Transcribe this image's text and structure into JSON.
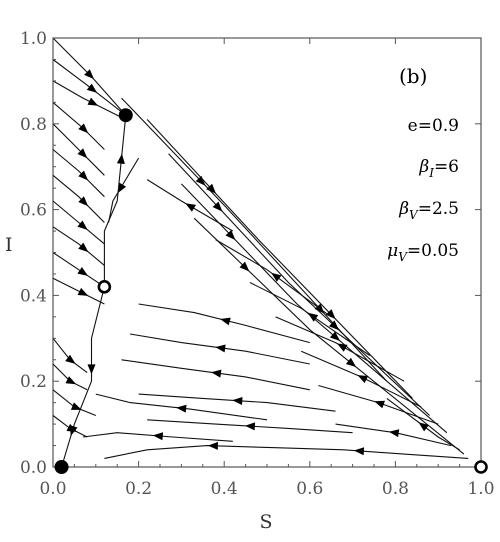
{
  "chart_data": {
    "type": "scatter",
    "panel_label": "(b)",
    "xlabel": "S",
    "ylabel": "I",
    "xlim": [
      0,
      1
    ],
    "ylim": [
      0,
      1
    ],
    "xticks": [
      "0.0",
      "0.2",
      "0.4",
      "0.6",
      "0.8",
      "1.0"
    ],
    "yticks": [
      "0.0",
      "0.2",
      "0.4",
      "0.6",
      "0.8",
      "1.0"
    ],
    "grid": false,
    "parameters": [
      {
        "symbol": "e",
        "sub": "",
        "value": "=0.9"
      },
      {
        "symbol": "β",
        "sub": "I",
        "value": "=6"
      },
      {
        "symbol": "β",
        "sub": "V",
        "value": "=2.5"
      },
      {
        "symbol": "μ",
        "sub": "V",
        "value": "=0.05"
      }
    ],
    "equilibria": [
      {
        "x": 0.02,
        "y": 0.0,
        "stability": "stable"
      },
      {
        "x": 0.17,
        "y": 0.82,
        "stability": "stable"
      },
      {
        "x": 0.12,
        "y": 0.42,
        "stability": "unstable"
      },
      {
        "x": 1.0,
        "y": 0.0,
        "stability": "unstable"
      }
    ],
    "streamlines": [
      {
        "points": [
          [
            0.0,
            1.0
          ],
          [
            0.09,
            0.91
          ],
          [
            0.17,
            0.82
          ]
        ],
        "arrows": [
          0.5
        ]
      },
      {
        "points": [
          [
            0.0,
            0.95
          ],
          [
            0.08,
            0.89
          ],
          [
            0.17,
            0.82
          ]
        ],
        "arrows": [
          0.55
        ]
      },
      {
        "points": [
          [
            0.0,
            0.9
          ],
          [
            0.07,
            0.86
          ],
          [
            0.16,
            0.815
          ]
        ],
        "arrows": [
          0.6
        ]
      },
      {
        "points": [
          [
            0.0,
            0.85
          ],
          [
            0.07,
            0.79
          ],
          [
            0.12,
            0.74
          ]
        ],
        "arrows": [
          0.6
        ]
      },
      {
        "points": [
          [
            0.0,
            0.8
          ],
          [
            0.06,
            0.74
          ],
          [
            0.12,
            0.68
          ]
        ],
        "arrows": [
          0.6
        ]
      },
      {
        "points": [
          [
            0.0,
            0.74
          ],
          [
            0.06,
            0.69
          ],
          [
            0.12,
            0.63
          ]
        ],
        "arrows": [
          0.6
        ]
      },
      {
        "points": [
          [
            0.0,
            0.68
          ],
          [
            0.06,
            0.63
          ],
          [
            0.12,
            0.57
          ]
        ],
        "arrows": [
          0.6
        ]
      },
      {
        "points": [
          [
            0.0,
            0.62
          ],
          [
            0.06,
            0.57
          ],
          [
            0.12,
            0.52
          ]
        ],
        "arrows": [
          0.6
        ]
      },
      {
        "points": [
          [
            0.0,
            0.56
          ],
          [
            0.06,
            0.52
          ],
          [
            0.12,
            0.47
          ]
        ],
        "arrows": [
          0.6
        ]
      },
      {
        "points": [
          [
            0.0,
            0.5
          ],
          [
            0.06,
            0.46
          ],
          [
            0.12,
            0.42
          ]
        ],
        "arrows": [
          0.6
        ]
      },
      {
        "points": [
          [
            0.0,
            0.44
          ],
          [
            0.06,
            0.41
          ],
          [
            0.12,
            0.38
          ]
        ],
        "arrows": [
          0.6
        ]
      },
      {
        "points": [
          [
            0.16,
            0.86
          ],
          [
            0.4,
            0.61
          ],
          [
            0.78,
            0.2
          ]
        ],
        "arrows": [
          0.3,
          0.75
        ]
      },
      {
        "points": [
          [
            0.22,
            0.81
          ],
          [
            0.48,
            0.53
          ],
          [
            0.84,
            0.16
          ]
        ],
        "arrows": [
          0.25,
          0.7
        ]
      },
      {
        "points": [
          [
            0.27,
            0.73
          ],
          [
            0.55,
            0.43
          ],
          [
            0.88,
            0.12
          ]
        ],
        "arrows": [
          0.2,
          0.65
        ]
      },
      {
        "points": [
          [
            0.3,
            0.66
          ],
          [
            0.57,
            0.38
          ],
          [
            0.92,
            0.08
          ]
        ],
        "arrows": [
          0.2,
          0.6
        ]
      },
      {
        "points": [
          [
            0.33,
            0.58
          ],
          [
            0.6,
            0.32
          ],
          [
            0.96,
            0.03
          ]
        ],
        "arrows": [
          0.2,
          0.6
        ]
      },
      {
        "points": [
          [
            0.95,
            0.04
          ],
          [
            0.9,
            0.07
          ],
          [
            0.78,
            0.16
          ]
        ],
        "arrows": [
          0.5
        ]
      },
      {
        "points": [
          [
            0.2,
            0.72
          ],
          [
            0.14,
            0.62
          ],
          [
            0.13,
            0.57
          ]
        ],
        "arrows": [
          0.5
        ]
      },
      {
        "points": [
          [
            0.42,
            0.55
          ],
          [
            0.3,
            0.62
          ],
          [
            0.22,
            0.67
          ]
        ],
        "arrows": [
          0.5
        ]
      },
      {
        "points": [
          [
            0.65,
            0.35
          ],
          [
            0.5,
            0.46
          ],
          [
            0.38,
            0.53
          ]
        ],
        "arrows": [
          0.5
        ]
      },
      {
        "points": [
          [
            0.74,
            0.26
          ],
          [
            0.58,
            0.37
          ],
          [
            0.46,
            0.43
          ]
        ],
        "arrows": [
          0.5
        ]
      },
      {
        "points": [
          [
            0.82,
            0.2
          ],
          [
            0.66,
            0.29
          ],
          [
            0.52,
            0.35
          ]
        ],
        "arrows": [
          0.5
        ]
      },
      {
        "points": [
          [
            0.86,
            0.14
          ],
          [
            0.72,
            0.21
          ],
          [
            0.58,
            0.27
          ]
        ],
        "arrows": [
          0.5
        ]
      },
      {
        "points": [
          [
            0.9,
            0.1
          ],
          [
            0.76,
            0.15
          ],
          [
            0.62,
            0.19
          ]
        ],
        "arrows": [
          0.5
        ]
      },
      {
        "points": [
          [
            0.93,
            0.05
          ],
          [
            0.8,
            0.08
          ],
          [
            0.66,
            0.1
          ]
        ],
        "arrows": [
          0.5
        ]
      },
      {
        "points": [
          [
            0.97,
            0.02
          ],
          [
            0.82,
            0.03
          ],
          [
            0.68,
            0.04
          ],
          [
            0.52,
            0.045
          ],
          [
            0.36,
            0.05
          ],
          [
            0.22,
            0.04
          ],
          [
            0.12,
            0.02
          ]
        ],
        "arrows": [
          0.3,
          0.7
        ]
      },
      {
        "points": [
          [
            0.6,
            0.29
          ],
          [
            0.45,
            0.33
          ],
          [
            0.33,
            0.36
          ],
          [
            0.2,
            0.38
          ]
        ],
        "arrows": [
          0.5
        ]
      },
      {
        "points": [
          [
            0.6,
            0.24
          ],
          [
            0.45,
            0.27
          ],
          [
            0.3,
            0.29
          ],
          [
            0.18,
            0.31
          ]
        ],
        "arrows": [
          0.5
        ]
      },
      {
        "points": [
          [
            0.6,
            0.18
          ],
          [
            0.45,
            0.21
          ],
          [
            0.3,
            0.23
          ],
          [
            0.16,
            0.25
          ]
        ],
        "arrows": [
          0.5
        ]
      },
      {
        "points": [
          [
            0.66,
            0.13
          ],
          [
            0.5,
            0.15
          ],
          [
            0.35,
            0.16
          ],
          [
            0.2,
            0.17
          ]
        ],
        "arrows": [
          0.5
        ]
      },
      {
        "points": [
          [
            0.7,
            0.08
          ],
          [
            0.55,
            0.09
          ],
          [
            0.38,
            0.1
          ],
          [
            0.22,
            0.11
          ]
        ],
        "arrows": [
          0.5
        ]
      },
      {
        "points": [
          [
            0.5,
            0.11
          ],
          [
            0.32,
            0.135
          ],
          [
            0.18,
            0.15
          ],
          [
            0.1,
            0.17
          ]
        ],
        "arrows": [
          0.5
        ]
      },
      {
        "points": [
          [
            0.42,
            0.06
          ],
          [
            0.28,
            0.07
          ],
          [
            0.15,
            0.08
          ],
          [
            0.07,
            0.07
          ]
        ],
        "arrows": [
          0.5
        ]
      },
      {
        "points": [
          [
            0.12,
            0.42
          ],
          [
            0.12,
            0.55
          ],
          [
            0.15,
            0.62
          ],
          [
            0.17,
            0.82
          ]
        ],
        "arrows": [
          0.75
        ]
      },
      {
        "points": [
          [
            0.12,
            0.42
          ],
          [
            0.09,
            0.3
          ],
          [
            0.09,
            0.2
          ],
          [
            0.05,
            0.1
          ],
          [
            0.02,
            0.0
          ]
        ],
        "arrows": [
          0.45,
          0.8
        ]
      },
      {
        "points": [
          [
            0.0,
            0.3
          ],
          [
            0.04,
            0.25
          ],
          [
            0.08,
            0.22
          ]
        ],
        "arrows": [
          0.6
        ]
      },
      {
        "points": [
          [
            0.0,
            0.24
          ],
          [
            0.04,
            0.2
          ],
          [
            0.08,
            0.18
          ]
        ],
        "arrows": [
          0.6
        ]
      },
      {
        "points": [
          [
            0.0,
            0.18
          ],
          [
            0.05,
            0.14
          ],
          [
            0.1,
            0.12
          ]
        ],
        "arrows": [
          0.6
        ]
      },
      {
        "points": [
          [
            0.0,
            0.12
          ],
          [
            0.04,
            0.09
          ],
          [
            0.08,
            0.07
          ]
        ],
        "arrows": [
          0.6
        ]
      }
    ]
  }
}
